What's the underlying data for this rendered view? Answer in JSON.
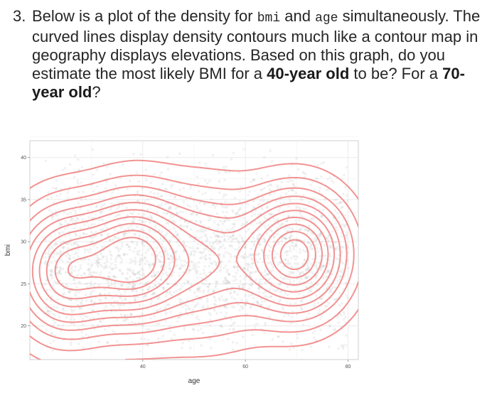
{
  "question": {
    "number": "3.",
    "t1": "Below is a plot of the density for ",
    "code_bmi": "bmi",
    "t2": " and ",
    "code_age": "age",
    "t3": " simultaneously. The curved lines display density contours much like a contour map in geography displays elevations. Based on this graph, do you estimate the most likely BMI for a ",
    "bold1": "40-year old",
    "t4": " to be? For a ",
    "bold2": "70-year old",
    "t5": "?"
  },
  "chart_data": {
    "type": "scatter",
    "overlay": "2d-density-contours",
    "xlabel": "age",
    "ylabel": "bmi",
    "xlim": [
      18,
      82
    ],
    "ylim": [
      16,
      42
    ],
    "x_ticks": [
      40,
      60,
      80
    ],
    "y_ticks": [
      20,
      25,
      30,
      35,
      40
    ],
    "grid": true,
    "point_color": "#9a9a9a",
    "contour_color": "#f08080",
    "density_modes": [
      {
        "age": 25,
        "bmi": 26.5
      },
      {
        "age": 38,
        "bmi": 28
      },
      {
        "age": 70,
        "bmi": 28.5
      }
    ]
  }
}
